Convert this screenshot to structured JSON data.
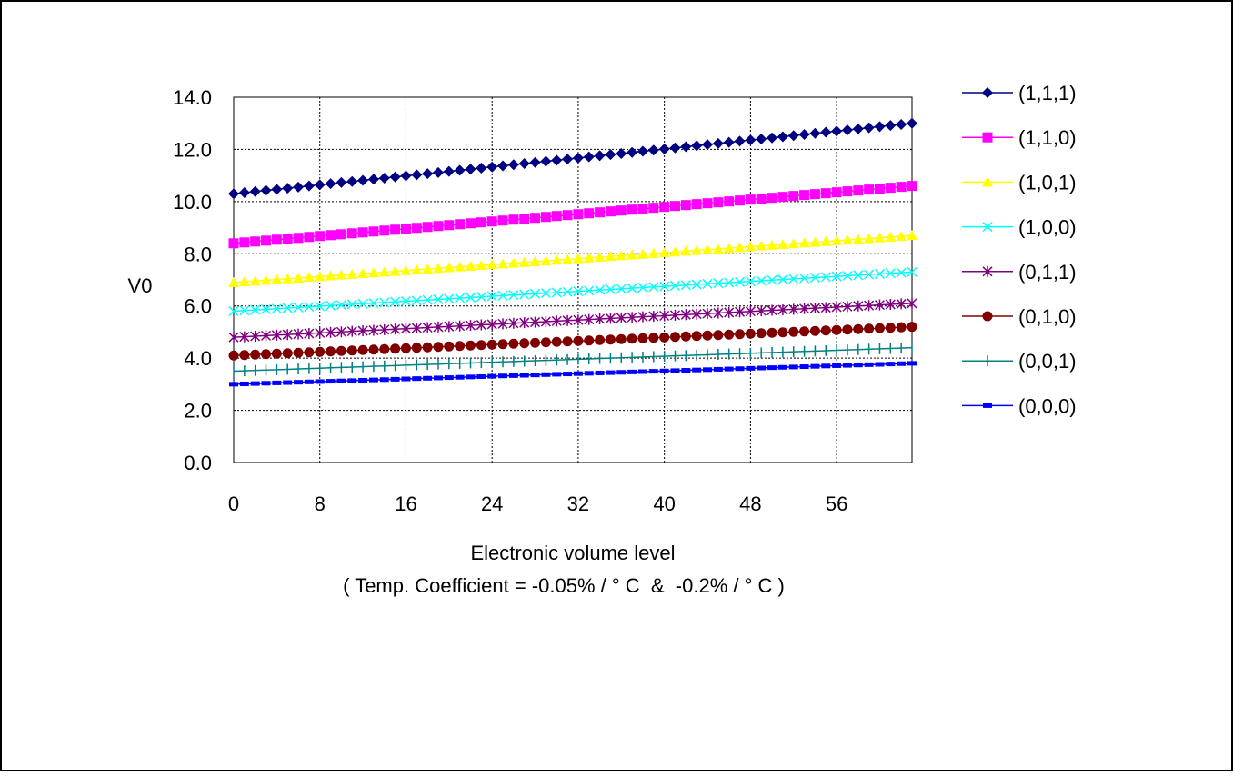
{
  "chart_data": {
    "type": "line",
    "title": "",
    "xlabel": "Electronic volume level",
    "xlabel_note": "( Temp. Coefficient = -0.05% / ° C  &  -0.2% / ° C )",
    "ylabel": "V0",
    "xlim": [
      0,
      63
    ],
    "ylim": [
      0,
      14
    ],
    "x_ticks": [
      0,
      8,
      16,
      24,
      32,
      40,
      48,
      56
    ],
    "y_ticks": [
      0,
      2,
      4,
      6,
      8,
      10,
      12,
      14
    ],
    "y_tick_labels": [
      "0.0",
      "2.0",
      "4.0",
      "6.0",
      "8.0",
      "10.0",
      "12.0",
      "14.0"
    ],
    "grid": true,
    "legend_position": "right",
    "x": "levels 0 through 63 (integer steps)",
    "series": [
      {
        "name": "(1,1,1)",
        "color": "#000080",
        "marker": "diamond",
        "start": 10.3,
        "end": 13.0
      },
      {
        "name": "(1,1,0)",
        "color": "#FF00FF",
        "marker": "square",
        "start": 8.4,
        "end": 10.6
      },
      {
        "name": "(1,0,1)",
        "color": "#FFFF00",
        "marker": "triangle",
        "start": 6.9,
        "end": 8.7
      },
      {
        "name": "(1,0,0)",
        "color": "#00FFFF",
        "marker": "x",
        "start": 5.8,
        "end": 7.3
      },
      {
        "name": "(0,1,1)",
        "color": "#800080",
        "marker": "star",
        "start": 4.8,
        "end": 6.1
      },
      {
        "name": "(0,1,0)",
        "color": "#800000",
        "marker": "circle",
        "start": 4.1,
        "end": 5.2
      },
      {
        "name": "(0,0,1)",
        "color": "#008080",
        "marker": "plus",
        "start": 3.5,
        "end": 4.4
      },
      {
        "name": "(0,0,0)",
        "color": "#0000FF",
        "marker": "dash",
        "start": 3.0,
        "end": 3.8
      }
    ]
  }
}
